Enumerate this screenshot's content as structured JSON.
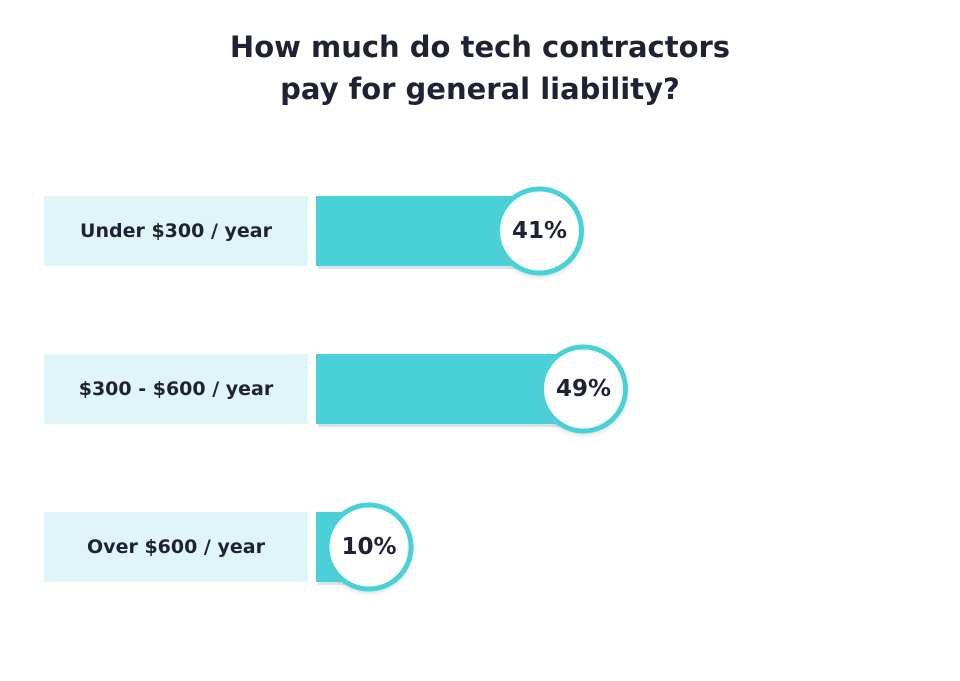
{
  "chart_data": {
    "type": "bar",
    "orientation": "horizontal",
    "title_lines": [
      "How much do tech contractors",
      "pay for general liability?"
    ],
    "categories": [
      "Under $300 / year",
      "$300 - $600 / year",
      "Over $600 / year"
    ],
    "values": [
      41,
      49,
      10
    ],
    "value_labels": [
      "41%",
      "49%",
      "10%"
    ],
    "unit": "%",
    "xlim": [
      0,
      100
    ],
    "grid": false,
    "legend": "none",
    "colors": {
      "bar": "#48d1d8",
      "label_bg": "#e0f5f7",
      "circle_border": "#48d1d8",
      "circle_fill": "#ffffff",
      "text": "#1f2233"
    }
  }
}
